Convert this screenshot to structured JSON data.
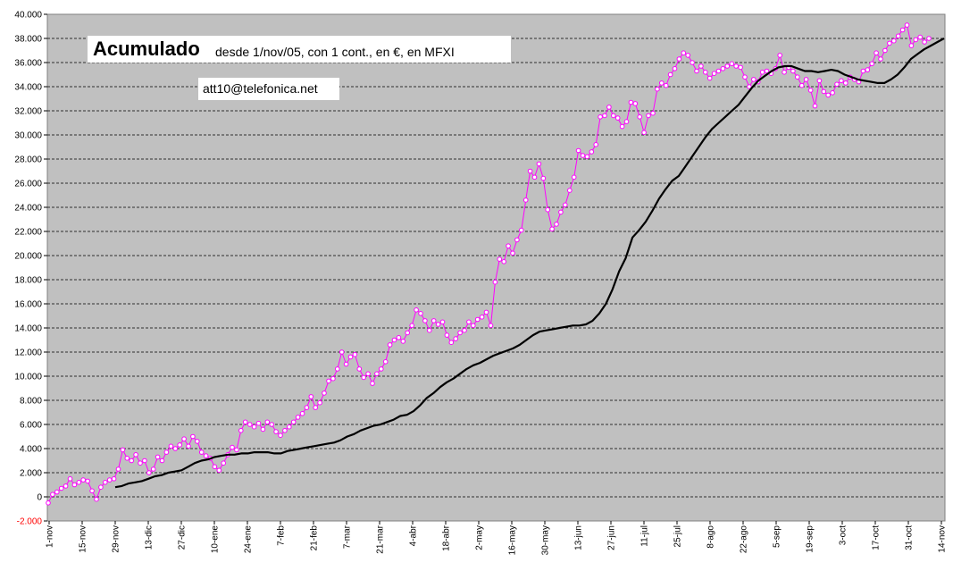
{
  "chart_data": {
    "type": "line",
    "title": "Acumulado",
    "subtitle": "desde 1/nov/05, con 1 cont., en €, en MFXI",
    "annotation": "att10@telefonica.net",
    "xlabel": "",
    "ylabel": "",
    "ylim": [
      -2000,
      40000
    ],
    "grid": true,
    "legend": "none",
    "y_ticks": [
      -2000,
      0,
      2000,
      4000,
      6000,
      8000,
      10000,
      12000,
      14000,
      16000,
      18000,
      20000,
      22000,
      24000,
      26000,
      28000,
      30000,
      32000,
      34000,
      36000,
      38000,
      40000
    ],
    "y_tick_labels": [
      "-2.000",
      "0",
      "2.000",
      "4.000",
      "6.000",
      "8.000",
      "10.000",
      "12.000",
      "14.000",
      "16.000",
      "18.000",
      "20.000",
      "22.000",
      "24.000",
      "26.000",
      "28.000",
      "30.000",
      "32.000",
      "34.000",
      "36.000",
      "38.000",
      "40.000"
    ],
    "x_tick_labels": [
      "1-nov",
      "15-nov",
      "29-nov",
      "13-dic",
      "27-dic",
      "10-ene",
      "24-ene",
      "7-feb",
      "21-feb",
      "7-mar",
      "21-mar",
      "4-abr",
      "18-abr",
      "2-may",
      "16-may",
      "30-may",
      "13-jun",
      "27-jun",
      "11-jul",
      "25-jul",
      "8-ago",
      "22-ago",
      "5-sep",
      "19-sep",
      "3-oct",
      "17-oct",
      "31-oct",
      "14-nov"
    ],
    "colors": {
      "plot_bg": "#c0c0c0",
      "series_1": "#ff00ff",
      "series_2": "#000000",
      "negative_tick": "#ff0000"
    },
    "series": [
      {
        "values": [
          -500,
          200,
          400,
          700,
          900,
          1500,
          1000,
          1200,
          1400,
          1300,
          500,
          -200,
          800,
          1200,
          1400,
          1500,
          2300,
          3900,
          3200,
          3000,
          3500,
          2800,
          3000,
          2000,
          2300,
          3300,
          3000,
          3700,
          4200,
          4000,
          4300,
          4800,
          4200,
          5000,
          4600,
          3700,
          3400,
          3200,
          2500,
          2200,
          2800,
          3500,
          4100,
          3900,
          5500,
          6200,
          6000,
          5800,
          6100,
          5600,
          6200,
          6000,
          5400,
          5100,
          5500,
          5800,
          6200,
          6600,
          6900,
          7400,
          8300,
          7400,
          7800,
          8600,
          9600,
          9800,
          10600,
          12000,
          11000,
          11600,
          11800,
          10600,
          9900,
          10200,
          9400,
          10200,
          10600,
          11200,
          12600,
          13000,
          13200,
          12900,
          13600,
          14200,
          15500,
          15200,
          14600,
          13800,
          14600,
          14300,
          14500,
          13400,
          12800,
          13100,
          13600,
          13800,
          14500,
          14200,
          14700,
          14900,
          15300,
          14200,
          17800,
          19700,
          19500,
          20800,
          20200,
          21300,
          22100,
          24600,
          27000,
          26500,
          27600,
          26400,
          23800,
          22200,
          22600,
          23600,
          24200,
          25400,
          26500,
          28700,
          28300,
          28200,
          28600,
          29200,
          31500,
          31600,
          32300,
          31600,
          31400,
          30700,
          31100,
          32700,
          32600,
          31500,
          30200,
          31600,
          31800,
          33800,
          34300,
          34100,
          35000,
          35500,
          36300,
          36800,
          36600,
          36000,
          35300,
          35700,
          35200,
          34700,
          35100,
          35300,
          35500,
          35700,
          35900,
          35700,
          35600,
          34800,
          34000,
          34600,
          34400,
          35200,
          35300,
          35100,
          35500,
          36600,
          35200,
          35600,
          35300,
          34800,
          34100,
          34600,
          33700,
          32400,
          34500,
          33600,
          33300,
          33500,
          34200,
          34500,
          34300,
          34800,
          34600,
          34400,
          35300,
          35400,
          35900,
          36800,
          36300,
          37000,
          37600,
          37800,
          38200,
          38700,
          39100,
          37400,
          37900,
          38100,
          37700,
          38000
        ]
      },
      {
        "values": [
          800,
          900,
          1100,
          1200,
          1300,
          1500,
          1700,
          1800,
          2000,
          2100,
          2200,
          2500,
          2800,
          3000,
          3100,
          3300,
          3400,
          3500,
          3500,
          3600,
          3600,
          3700,
          3700,
          3700,
          3600,
          3600,
          3800,
          3900,
          4000,
          4100,
          4200,
          4300,
          4400,
          4500,
          4700,
          5000,
          5200,
          5500,
          5700,
          5900,
          6000,
          6200,
          6400,
          6700,
          6800,
          7100,
          7600,
          8200,
          8600,
          9100,
          9500,
          9800,
          10200,
          10600,
          10900,
          11100,
          11400,
          11700,
          11900,
          12100,
          12300,
          12600,
          13000,
          13400,
          13700,
          13800,
          13900,
          14000,
          14100,
          14200,
          14200,
          14300,
          14600,
          15200,
          16000,
          17200,
          18700,
          19800,
          21500,
          22100,
          22800,
          23700,
          24700,
          25500,
          26200,
          26600,
          27400,
          28200,
          29000,
          29800,
          30500,
          31000,
          31500,
          32000,
          32500,
          33200,
          33900,
          34500,
          34900,
          35300,
          35600,
          35700,
          35700,
          35500,
          35300,
          35300,
          35200,
          35300,
          35400,
          35300,
          35000,
          34800,
          34600,
          34500,
          34400,
          34300,
          34300,
          34600,
          35000,
          35600,
          36300,
          36700,
          37100,
          37400,
          37700,
          38000
        ]
      }
    ]
  }
}
